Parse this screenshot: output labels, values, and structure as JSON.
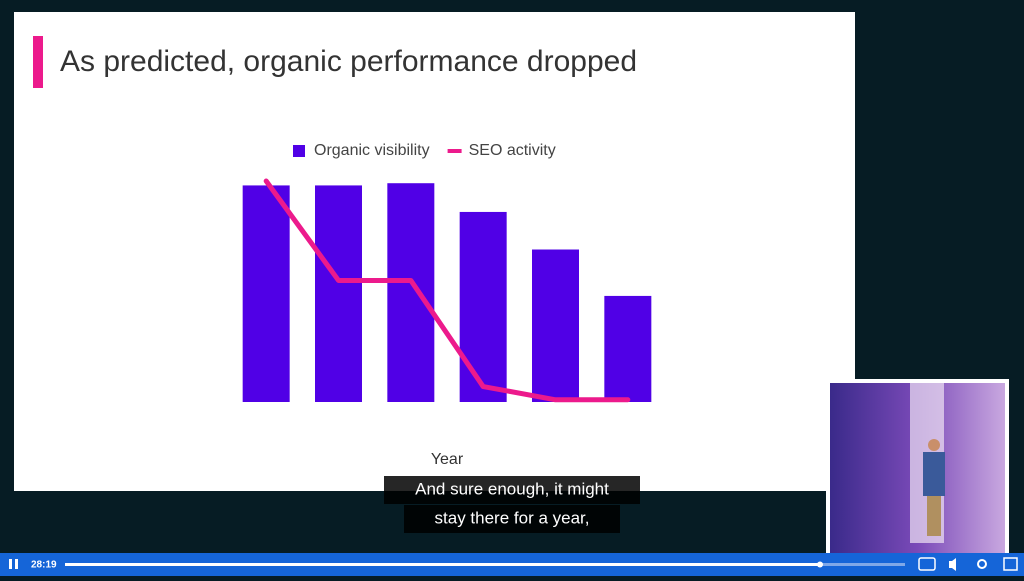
{
  "slide": {
    "title": "As predicted, organic performance dropped"
  },
  "chart_data": {
    "type": "bar",
    "x_label": "Year",
    "categories": [
      null,
      null,
      null,
      null,
      null,
      null
    ],
    "series": [
      {
        "name": "Organic visibility",
        "color": "#5000e6",
        "type": "bar",
        "values": [
          98,
          98,
          99,
          86,
          69,
          48
        ]
      },
      {
        "name": "SEO activity",
        "color": "#ec1a8c",
        "type": "line",
        "values": [
          100,
          55,
          55,
          7,
          1,
          1
        ]
      }
    ],
    "ylim": [
      0,
      100
    ],
    "legend": "top"
  },
  "captions": [
    "And sure enough, it might",
    "stay there for a year,"
  ],
  "player": {
    "time": "28:19"
  }
}
